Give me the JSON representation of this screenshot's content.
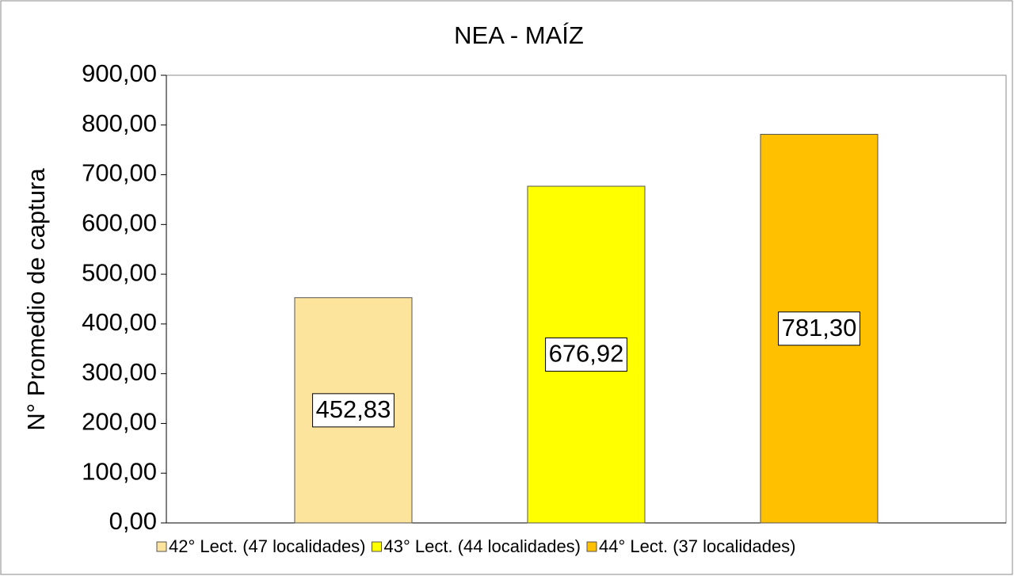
{
  "chart_data": {
    "type": "bar",
    "title": "NEA - MAÍZ",
    "y_label": "N° Promedio de captura",
    "categories": [
      null
    ],
    "series": [
      {
        "name": "42° Lect. (47 localidades)",
        "color": "#FDE49C",
        "values": [
          452.83
        ],
        "value_labels": [
          "452,83"
        ]
      },
      {
        "name": "43° Lect. (44 localidades)",
        "color": "#FFFF00",
        "values": [
          676.92
        ],
        "value_labels": [
          "676,92"
        ]
      },
      {
        "name": "44° Lect. (37 localidades)",
        "color": "#FFC000",
        "values": [
          781.3
        ],
        "value_labels": [
          "781,30"
        ]
      }
    ],
    "ylim": [
      0,
      900
    ],
    "yticks": [
      {
        "value": 0,
        "label": "0,00"
      },
      {
        "value": 100,
        "label": "100,00"
      },
      {
        "value": 200,
        "label": "200,00"
      },
      {
        "value": 300,
        "label": "300,00"
      },
      {
        "value": 400,
        "label": "400,00"
      },
      {
        "value": 500,
        "label": "500,00"
      },
      {
        "value": 600,
        "label": "600,00"
      },
      {
        "value": 700,
        "label": "700,00"
      },
      {
        "value": 800,
        "label": "800,00"
      },
      {
        "value": 900,
        "label": "900,00"
      }
    ],
    "grid": false,
    "legend": "bottom"
  }
}
